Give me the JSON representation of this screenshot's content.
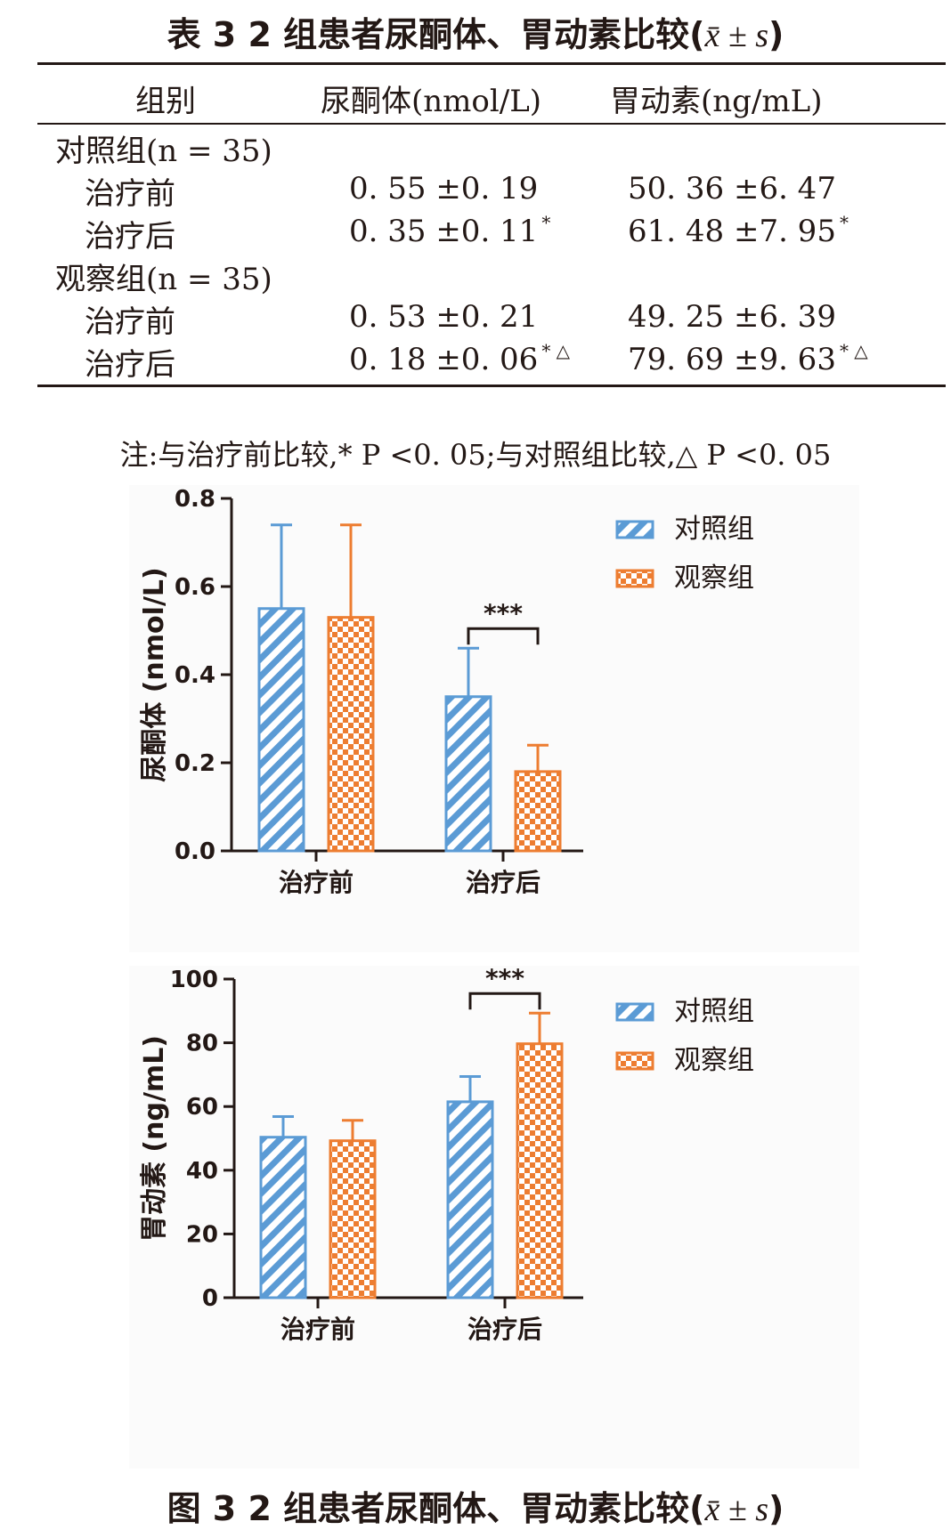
{
  "table": {
    "caption": "表 3   2 组患者尿酮体、胃动素比较(",
    "caption_stat": "x̄ ± s",
    "caption_close": ")",
    "headers": [
      "组别",
      "尿酮体(nmol/L)",
      "胃动素(ng/mL)"
    ],
    "groups": [
      {
        "label": "对照组(n = 35)",
        "rows": [
          {
            "label": "治疗前",
            "ketone": "0. 55 ±0. 19",
            "ketone_mark": "",
            "motilin": "50. 36 ±6. 47",
            "motilin_mark": ""
          },
          {
            "label": "治疗后",
            "ketone": "0. 35 ±0. 11",
            "ketone_mark": "*",
            "motilin": "61. 48 ±7. 95",
            "motilin_mark": "*"
          }
        ]
      },
      {
        "label": "观察组(n = 35)",
        "rows": [
          {
            "label": "治疗前",
            "ketone": "0. 53 ±0. 21",
            "ketone_mark": "",
            "motilin": "49. 25 ±6. 39",
            "motilin_mark": ""
          },
          {
            "label": "治疗后",
            "ketone": "0. 18 ±0. 06",
            "ketone_mark": "* △",
            "motilin": "79. 69 ±9. 63",
            "motilin_mark": "* △"
          }
        ]
      }
    ],
    "note": "注:与治疗前比较,* P <0. 05;与对照组比较,△ P <0. 05"
  },
  "colors": {
    "control": "#5b9bd5",
    "observation": "#ed7d31",
    "text": "#231815"
  },
  "chart_data": [
    {
      "type": "bar",
      "categories": [
        "治疗前",
        "治疗后"
      ],
      "series": [
        {
          "name": "对照组",
          "values": [
            0.55,
            0.35
          ],
          "errors": [
            0.19,
            0.11
          ],
          "pattern": "diagonal-stripes"
        },
        {
          "name": "观察组",
          "values": [
            0.53,
            0.18
          ],
          "errors": [
            0.21,
            0.06
          ],
          "pattern": "checkerboard"
        }
      ],
      "ylabel": "尿酮体 (nmol/L)",
      "ylim": [
        0,
        0.8
      ],
      "yticks": [
        "0.0",
        "0.2",
        "0.4",
        "0.6",
        "0.8"
      ],
      "ytick_values": [
        0,
        0.2,
        0.4,
        0.6,
        0.8
      ],
      "significance": {
        "category": "治疗后",
        "label": "***"
      },
      "legend_position": "top-right",
      "grid": false
    },
    {
      "type": "bar",
      "categories": [
        "治疗前",
        "治疗后"
      ],
      "series": [
        {
          "name": "对照组",
          "values": [
            50.36,
            61.48
          ],
          "errors": [
            6.47,
            7.95
          ],
          "pattern": "diagonal-stripes"
        },
        {
          "name": "观察组",
          "values": [
            49.25,
            79.69
          ],
          "errors": [
            6.39,
            9.63
          ],
          "pattern": "checkerboard"
        }
      ],
      "ylabel": "胃动素 (ng/mL)",
      "ylim": [
        0,
        100
      ],
      "yticks": [
        "0",
        "20",
        "40",
        "60",
        "80",
        "100"
      ],
      "ytick_values": [
        0,
        20,
        40,
        60,
        80,
        100
      ],
      "significance": {
        "category": "治疗后",
        "label": "***"
      },
      "legend_position": "top-right",
      "grid": false
    }
  ],
  "figure": {
    "caption": "图 3   2 组患者尿酮体、胃动素比较(",
    "caption_stat": "x̄ ± s",
    "caption_close": ")"
  }
}
